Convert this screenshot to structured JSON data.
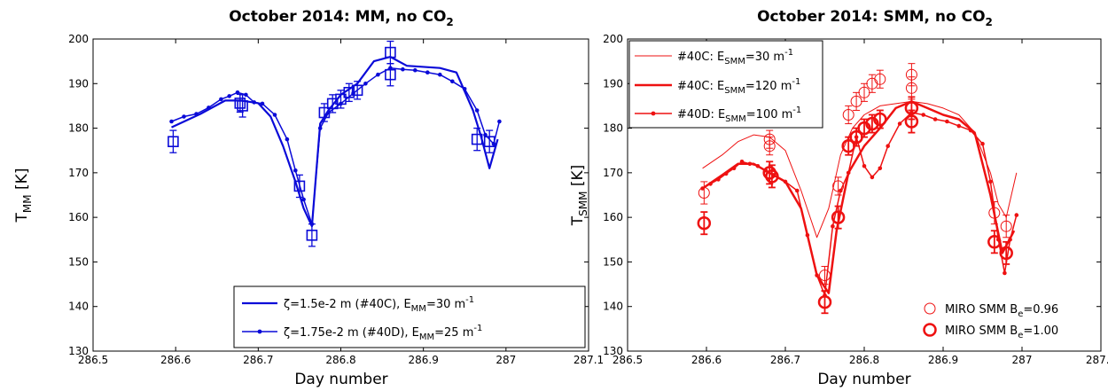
{
  "chart_data": [
    {
      "type": "line",
      "title_main": "October 2014: MM, no CO",
      "title_sub": "2",
      "xlabel": "Day number",
      "ylabel_main": "T",
      "ylabel_sub": "MM",
      "ylabel_tail": " [K]",
      "xlim": [
        286.5,
        287.1
      ],
      "ylim": [
        130,
        200
      ],
      "xticks": [
        "286.5",
        "286.6",
        "286.7",
        "286.8",
        "286.9",
        "287",
        "287.1"
      ],
      "xtick_values": [
        286.5,
        286.6,
        286.7,
        286.8,
        286.9,
        287.0,
        287.1
      ],
      "yticks": [
        "130",
        "140",
        "150",
        "160",
        "170",
        "180",
        "190",
        "200"
      ],
      "ytick_values": [
        130,
        140,
        150,
        160,
        170,
        180,
        190,
        200
      ],
      "color": "#0a0ad8",
      "legend_placement": "bottom-right",
      "series": [
        {
          "name_parts": [
            "ζ=1.5e-2 m (#40C), E",
            "MM",
            "=30 m",
            "-1",
            ""
          ],
          "marker": "none",
          "width": 2.2,
          "points": [
            [
              286.595,
              180.2
            ],
            [
              286.63,
              183.2
            ],
            [
              286.66,
              186.2
            ],
            [
              286.68,
              186.2
            ],
            [
              286.7,
              185.6
            ],
            [
              286.715,
              182.6
            ],
            [
              286.73,
              176.0
            ],
            [
              286.745,
              168.0
            ],
            [
              286.755,
              162.0
            ],
            [
              286.765,
              158.0
            ],
            [
              286.775,
              181.0
            ],
            [
              286.785,
              184.0
            ],
            [
              286.8,
              187.5
            ],
            [
              286.82,
              190.0
            ],
            [
              286.84,
              195.0
            ],
            [
              286.86,
              196.0
            ],
            [
              286.88,
              194.0
            ],
            [
              286.92,
              193.5
            ],
            [
              286.94,
              192.5
            ],
            [
              286.96,
              184.0
            ],
            [
              286.97,
              178.0
            ],
            [
              286.98,
              171.0
            ],
            [
              286.99,
              177.5
            ]
          ]
        },
        {
          "name_parts": [
            "ζ=1.75e-2 m (#40D), E",
            "MM",
            "=25 m",
            "-1",
            ""
          ],
          "marker": "dot",
          "width": 1.5,
          "points": [
            [
              286.595,
              181.5
            ],
            [
              286.61,
              182.6
            ],
            [
              286.625,
              183.2
            ],
            [
              286.64,
              184.6
            ],
            [
              286.655,
              186.5
            ],
            [
              286.665,
              187.2
            ],
            [
              286.675,
              188.0
            ],
            [
              286.685,
              187.5
            ],
            [
              286.695,
              185.8
            ],
            [
              286.705,
              185.5
            ],
            [
              286.72,
              183.0
            ],
            [
              286.735,
              177.5
            ],
            [
              286.745,
              170.5
            ],
            [
              286.755,
              164.0
            ],
            [
              286.765,
              158.5
            ],
            [
              286.775,
              180.0
            ],
            [
              286.785,
              183.5
            ],
            [
              286.8,
              185.5
            ],
            [
              286.815,
              187.8
            ],
            [
              286.83,
              190.0
            ],
            [
              286.845,
              192.0
            ],
            [
              286.86,
              193.5
            ],
            [
              286.875,
              193.2
            ],
            [
              286.89,
              193.0
            ],
            [
              286.905,
              192.5
            ],
            [
              286.92,
              192.0
            ],
            [
              286.935,
              190.5
            ],
            [
              286.95,
              188.8
            ],
            [
              286.965,
              184.0
            ],
            [
              286.975,
              178.5
            ],
            [
              286.985,
              176.5
            ],
            [
              286.992,
              181.5
            ]
          ]
        }
      ],
      "observations": {
        "marker": "square",
        "points": [
          [
            286.597,
            177.0,
            2.5
          ],
          [
            286.678,
            185.6,
            2.0
          ],
          [
            286.681,
            185.0,
            2.5
          ],
          [
            286.75,
            167.0,
            2.5
          ],
          [
            286.765,
            156.0,
            2.5
          ],
          [
            286.78,
            183.5,
            2.0
          ],
          [
            286.79,
            185.5,
            2.0
          ],
          [
            286.8,
            186.5,
            2.0
          ],
          [
            286.81,
            188.0,
            2.0
          ],
          [
            286.82,
            188.5,
            2.0
          ],
          [
            286.86,
            197.0,
            2.5
          ],
          [
            286.86,
            192.0,
            2.5
          ],
          [
            286.965,
            177.5,
            2.5
          ],
          [
            286.98,
            177.0,
            2.5
          ]
        ]
      }
    },
    {
      "type": "line",
      "title_main": "October 2014: SMM, no CO",
      "title_sub": "2",
      "xlabel": "Day number",
      "ylabel_main": "T",
      "ylabel_sub": "SMM",
      "ylabel_tail": " [K]",
      "xlim": [
        286.5,
        287.1
      ],
      "ylim": [
        130,
        200
      ],
      "xticks": [
        "286.5",
        "286.6",
        "286.7",
        "286.8",
        "286.9",
        "287",
        "287.1"
      ],
      "xtick_values": [
        286.5,
        286.6,
        286.7,
        286.8,
        286.9,
        287.0,
        287.1
      ],
      "yticks": [
        "130",
        "140",
        "150",
        "160",
        "170",
        "180",
        "190",
        "200"
      ],
      "ytick_values": [
        130,
        140,
        150,
        160,
        170,
        180,
        190,
        200
      ],
      "color": "#ee1111",
      "legend_placement": "top-left",
      "series": [
        {
          "name_parts": [
            "#40C: E",
            "SMM",
            "=30 m",
            "-1",
            ""
          ],
          "marker": "none",
          "width": 1.0,
          "points": [
            [
              286.595,
              171.0
            ],
            [
              286.62,
              174.0
            ],
            [
              286.64,
              177.0
            ],
            [
              286.66,
              178.5
            ],
            [
              286.68,
              178.0
            ],
            [
              286.7,
              175.0
            ],
            [
              286.72,
              166.0
            ],
            [
              286.74,
              155.5
            ],
            [
              286.755,
              162.0
            ],
            [
              286.77,
              174.0
            ],
            [
              286.785,
              180.0
            ],
            [
              286.8,
              183.0
            ],
            [
              286.82,
              185.0
            ],
            [
              286.84,
              185.5
            ],
            [
              286.86,
              186.0
            ],
            [
              286.88,
              185.5
            ],
            [
              286.9,
              184.5
            ],
            [
              286.92,
              183.0
            ],
            [
              286.94,
              179.0
            ],
            [
              286.96,
              170.0
            ],
            [
              286.97,
              163.0
            ],
            [
              286.98,
              160.0
            ],
            [
              286.993,
              170.0
            ]
          ]
        },
        {
          "name_parts": [
            "#40C: E",
            "SMM",
            "=120 m",
            "-1",
            ""
          ],
          "marker": "none",
          "width": 2.5,
          "points": [
            [
              286.595,
              166.5
            ],
            [
              286.62,
              169.5
            ],
            [
              286.64,
              172.0
            ],
            [
              286.66,
              172.0
            ],
            [
              286.68,
              170.0
            ],
            [
              286.7,
              168.0
            ],
            [
              286.72,
              162.0
            ],
            [
              286.74,
              147.0
            ],
            [
              286.755,
              143.0
            ],
            [
              286.765,
              157.0
            ],
            [
              286.78,
              170.0
            ],
            [
              286.8,
              176.0
            ],
            [
              286.82,
              180.0
            ],
            [
              286.84,
              184.5
            ],
            [
              286.86,
              186.0
            ],
            [
              286.88,
              184.5
            ],
            [
              286.9,
              183.0
            ],
            [
              286.92,
              182.0
            ],
            [
              286.94,
              179.0
            ],
            [
              286.96,
              165.0
            ],
            [
              286.975,
              152.0
            ],
            [
              286.99,
              157.0
            ]
          ]
        },
        {
          "name_parts": [
            "#40D: E",
            "SMM",
            "=100 m",
            "-1",
            ""
          ],
          "marker": "dot",
          "width": 1.5,
          "points": [
            [
              286.595,
              166.5
            ],
            [
              286.605,
              167.5
            ],
            [
              286.615,
              168.5
            ],
            [
              286.625,
              169.8
            ],
            [
              286.635,
              171.0
            ],
            [
              286.645,
              172.5
            ],
            [
              286.655,
              172.0
            ],
            [
              286.665,
              171.5
            ],
            [
              286.675,
              170.5
            ],
            [
              286.685,
              169.5
            ],
            [
              286.7,
              168.0
            ],
            [
              286.715,
              166.0
            ],
            [
              286.728,
              156.0
            ],
            [
              286.74,
              147.0
            ],
            [
              286.75,
              142.5
            ],
            [
              286.76,
              158.0
            ],
            [
              286.77,
              166.0
            ],
            [
              286.78,
              170.0
            ],
            [
              286.79,
              178.0
            ],
            [
              286.8,
              171.5
            ],
            [
              286.81,
              169.0
            ],
            [
              286.82,
              171.0
            ],
            [
              286.83,
              176.0
            ],
            [
              286.845,
              181.0
            ],
            [
              286.86,
              183.5
            ],
            [
              286.875,
              183.0
            ],
            [
              286.89,
              182.0
            ],
            [
              286.905,
              181.5
            ],
            [
              286.92,
              180.5
            ],
            [
              286.935,
              179.5
            ],
            [
              286.95,
              176.5
            ],
            [
              286.96,
              168.0
            ],
            [
              286.97,
              155.0
            ],
            [
              286.978,
              147.5
            ],
            [
              286.985,
              155.0
            ],
            [
              286.993,
              160.5
            ]
          ]
        }
      ],
      "observations_legend": [
        {
          "name_parts": [
            "MIRO SMM B",
            "e",
            "=0.96"
          ],
          "size": "small"
        },
        {
          "name_parts": [
            "MIRO SMM B",
            "e",
            "=1.00"
          ],
          "size": "large"
        }
      ],
      "observations_small": [
        [
          286.597,
          165.5,
          2.5
        ],
        [
          286.68,
          177.5,
          2.0
        ],
        [
          286.68,
          176.0,
          2.0
        ],
        [
          286.75,
          147.0,
          2.0
        ],
        [
          286.767,
          167.0,
          2.0
        ],
        [
          286.78,
          183.0,
          2.0
        ],
        [
          286.79,
          186.0,
          2.0
        ],
        [
          286.8,
          188.0,
          2.0
        ],
        [
          286.81,
          190.0,
          2.0
        ],
        [
          286.82,
          191.0,
          2.0
        ],
        [
          286.86,
          192.0,
          2.5
        ],
        [
          286.86,
          189.0,
          2.5
        ],
        [
          286.965,
          161.0,
          2.5
        ],
        [
          286.98,
          158.0,
          2.5
        ]
      ],
      "observations_large": [
        [
          286.597,
          158.7,
          2.5
        ],
        [
          286.68,
          170.0,
          2.5
        ],
        [
          286.683,
          169.2,
          2.5
        ],
        [
          286.75,
          141.0,
          2.5
        ],
        [
          286.767,
          160.0,
          2.5
        ],
        [
          286.78,
          176.0,
          2.0
        ],
        [
          286.79,
          178.0,
          2.0
        ],
        [
          286.8,
          180.0,
          2.0
        ],
        [
          286.81,
          181.0,
          2.0
        ],
        [
          286.82,
          182.0,
          2.0
        ],
        [
          286.86,
          184.5,
          2.5
        ],
        [
          286.86,
          181.5,
          2.5
        ],
        [
          286.965,
          154.5,
          2.5
        ],
        [
          286.98,
          152.0,
          2.5
        ]
      ]
    }
  ]
}
